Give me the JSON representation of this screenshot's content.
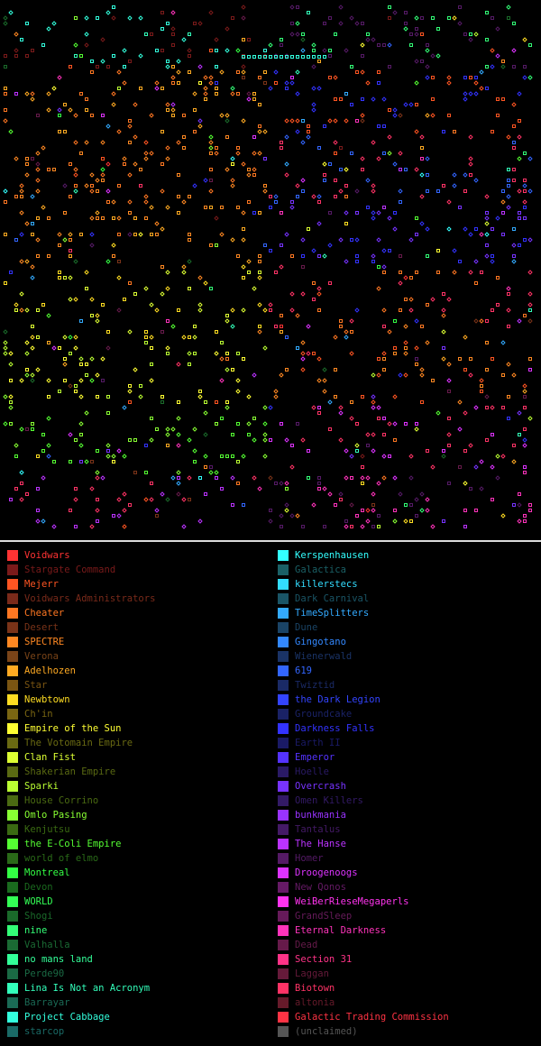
{
  "legend": {
    "left": [
      {
        "name": "Voidwars",
        "color": "#ff3333"
      },
      {
        "name": "Stargate Command",
        "color": "#7a1a1a"
      },
      {
        "name": "Mejerr",
        "color": "#ff5522"
      },
      {
        "name": "Voidwars Administrators",
        "color": "#7a2a1a"
      },
      {
        "name": "Cheater",
        "color": "#ff7722"
      },
      {
        "name": "Desert",
        "color": "#7a3318"
      },
      {
        "name": "SPECTRE",
        "color": "#ff8822"
      },
      {
        "name": "Verona",
        "color": "#7a4418"
      },
      {
        "name": "Adelhozen",
        "color": "#ffaa22"
      },
      {
        "name": "Star",
        "color": "#7a5512"
      },
      {
        "name": "Newbtown",
        "color": "#ffdd22"
      },
      {
        "name": "Ch'in",
        "color": "#7a6612"
      },
      {
        "name": "Empire of the Sun",
        "color": "#ffff33"
      },
      {
        "name": "The Votomain Empire",
        "color": "#6a6a12"
      },
      {
        "name": "Clan Fist",
        "color": "#ddff33"
      },
      {
        "name": "Shakerian Empire",
        "color": "#5a6a12"
      },
      {
        "name": "Sparki",
        "color": "#bbff33"
      },
      {
        "name": "House Corrino",
        "color": "#4a6a12"
      },
      {
        "name": "Omlo Pasing",
        "color": "#88ff33"
      },
      {
        "name": "Kenjutsu",
        "color": "#3a6a12"
      },
      {
        "name": "the E-Coli Empire",
        "color": "#55ff33"
      },
      {
        "name": "world of elmo",
        "color": "#2a6a18"
      },
      {
        "name": "Montreal",
        "color": "#33ff44"
      },
      {
        "name": "Devon",
        "color": "#1a6a1e"
      },
      {
        "name": "WORLD",
        "color": "#33ff55"
      },
      {
        "name": "Shogi",
        "color": "#1a6a2a"
      },
      {
        "name": "nine",
        "color": "#33ff77"
      },
      {
        "name": "Valhalla",
        "color": "#1a6a33"
      },
      {
        "name": "no mans land",
        "color": "#33ff99"
      },
      {
        "name": "Perde90",
        "color": "#1a6a44"
      },
      {
        "name": "Lina Is Not an Acronym",
        "color": "#33ffbb"
      },
      {
        "name": "Barrayar",
        "color": "#1a6a55"
      },
      {
        "name": "Project Cabbage",
        "color": "#33ffdd"
      },
      {
        "name": "starcop",
        "color": "#1a6a66"
      }
    ],
    "right": [
      {
        "name": "Kerspenhausen",
        "color": "#33ffff"
      },
      {
        "name": "Galactica",
        "color": "#1a6066"
      },
      {
        "name": "killerstecs",
        "color": "#33ddff"
      },
      {
        "name": "Dark Carnival",
        "color": "#1a5566"
      },
      {
        "name": "TimeSplitters",
        "color": "#33aaff"
      },
      {
        "name": "Dune",
        "color": "#1a4466"
      },
      {
        "name": "Gingotano",
        "color": "#3388ff"
      },
      {
        "name": "Wienerwald",
        "color": "#1a3366"
      },
      {
        "name": "619",
        "color": "#3366ff"
      },
      {
        "name": "Twiztid",
        "color": "#1a2a66"
      },
      {
        "name": "the Dark Legion",
        "color": "#3344ff"
      },
      {
        "name": "Groundcake",
        "color": "#1a2266"
      },
      {
        "name": "Darkness Falls",
        "color": "#3333ff"
      },
      {
        "name": "Earth II",
        "color": "#1a1a66"
      },
      {
        "name": "Emperor",
        "color": "#5533ff"
      },
      {
        "name": "Hoelle",
        "color": "#2a1a66"
      },
      {
        "name": "Overcrash",
        "color": "#7733ff"
      },
      {
        "name": "Omen Killers",
        "color": "#331a66"
      },
      {
        "name": "bunkmania",
        "color": "#9933ff"
      },
      {
        "name": "Tantalus",
        "color": "#441a66"
      },
      {
        "name": "The Hanse",
        "color": "#bb33ff"
      },
      {
        "name": "Homer",
        "color": "#551a66"
      },
      {
        "name": "Droogenoogs",
        "color": "#dd33ff"
      },
      {
        "name": "New Qonos",
        "color": "#661a66"
      },
      {
        "name": "WeiBerRieseMegaperls",
        "color": "#ff33ee"
      },
      {
        "name": "GrandSleep",
        "color": "#661a5a"
      },
      {
        "name": "Eternal Darkness",
        "color": "#ff33bb"
      },
      {
        "name": "Dead",
        "color": "#661a4a"
      },
      {
        "name": "Section 31",
        "color": "#ff3388"
      },
      {
        "name": "Laggan",
        "color": "#661a3a"
      },
      {
        "name": "Biotown",
        "color": "#ff3366"
      },
      {
        "name": "altonia",
        "color": "#661a2a"
      },
      {
        "name": "Galactic Trading Commission",
        "color": "#ff3344"
      },
      {
        "name": "(unclaimed)",
        "color": "#555555"
      }
    ]
  }
}
